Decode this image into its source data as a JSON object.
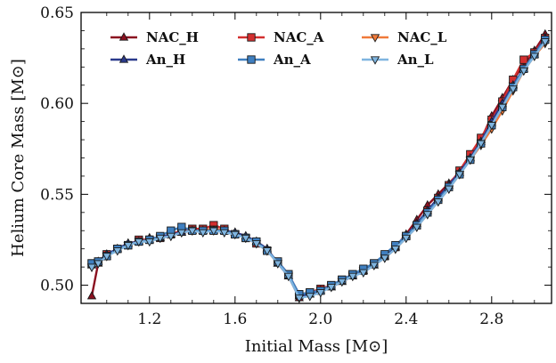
{
  "chart_data": {
    "type": "line",
    "xlabel": "Initial Mass [M⊙]",
    "ylabel": "Helium Core Mass [M⊙]",
    "xlim": [
      0.88,
      3.08
    ],
    "ylim": [
      0.49,
      0.65
    ],
    "xticks": [
      1.2,
      1.6,
      2.0,
      2.4,
      2.8
    ],
    "xtick_labels": [
      "1.2",
      "1.6",
      "2.0",
      "2.4",
      "2.8"
    ],
    "yticks": [
      0.5,
      0.55,
      0.6,
      0.65
    ],
    "ytick_labels": [
      "0.50",
      "0.55",
      "0.60",
      "0.65"
    ],
    "legend_position": "upper-left, 3 columns",
    "grid": false,
    "series": [
      {
        "name": "NAC_H",
        "color": "#8b1020",
        "marker": "triangle-up",
        "x": [
          0.93,
          0.96,
          1.0,
          1.05,
          1.1,
          1.15,
          1.2,
          1.25,
          1.3,
          1.35,
          1.4,
          1.45,
          1.5,
          1.55,
          1.6,
          1.65,
          1.7,
          1.75,
          1.8,
          1.85,
          1.9,
          1.95,
          2.0,
          2.05,
          2.1,
          2.15,
          2.2,
          2.25,
          2.3,
          2.35,
          2.4,
          2.45,
          2.5,
          2.55,
          2.6,
          2.65,
          2.7,
          2.75,
          2.8,
          2.85,
          2.9,
          2.95,
          3.0,
          3.05
        ],
        "y": [
          0.494,
          0.512,
          0.516,
          0.52,
          0.523,
          0.524,
          0.526,
          0.526,
          0.528,
          0.529,
          0.53,
          0.53,
          0.531,
          0.53,
          0.529,
          0.527,
          0.524,
          0.52,
          0.512,
          0.505,
          0.493,
          0.495,
          0.497,
          0.499,
          0.502,
          0.505,
          0.508,
          0.511,
          0.516,
          0.521,
          0.528,
          0.536,
          0.544,
          0.55,
          0.556,
          0.562,
          0.57,
          0.58,
          0.593,
          0.603,
          0.613,
          0.621,
          0.629,
          0.638
        ]
      },
      {
        "name": "NAC_A",
        "color": "#d32f2f",
        "marker": "square",
        "x": [
          0.93,
          0.96,
          1.0,
          1.05,
          1.1,
          1.15,
          1.2,
          1.25,
          1.3,
          1.35,
          1.4,
          1.45,
          1.5,
          1.55,
          1.6,
          1.65,
          1.7,
          1.75,
          1.8,
          1.85,
          1.9,
          1.95,
          2.0,
          2.05,
          2.1,
          2.15,
          2.2,
          2.25,
          2.3,
          2.35,
          2.4,
          2.45,
          2.5,
          2.55,
          2.6,
          2.65,
          2.7,
          2.75,
          2.8,
          2.85,
          2.9,
          2.95,
          3.0,
          3.05
        ],
        "y": [
          0.512,
          0.513,
          0.517,
          0.52,
          0.522,
          0.525,
          0.525,
          0.526,
          0.528,
          0.53,
          0.531,
          0.531,
          0.533,
          0.531,
          0.528,
          0.526,
          0.523,
          0.519,
          0.513,
          0.506,
          0.495,
          0.496,
          0.498,
          0.5,
          0.503,
          0.506,
          0.508,
          0.512,
          0.516,
          0.521,
          0.527,
          0.533,
          0.541,
          0.548,
          0.555,
          0.563,
          0.572,
          0.581,
          0.591,
          0.601,
          0.613,
          0.624,
          0.628,
          0.636
        ]
      },
      {
        "name": "NAC_L",
        "color": "#f07a3a",
        "marker": "triangle-down",
        "x": [
          0.93,
          0.96,
          1.0,
          1.05,
          1.1,
          1.15,
          1.2,
          1.25,
          1.3,
          1.35,
          1.4,
          1.45,
          1.5,
          1.55,
          1.6,
          1.65,
          1.7,
          1.75,
          1.8,
          1.85,
          1.9,
          1.95,
          2.0,
          2.05,
          2.1,
          2.15,
          2.2,
          2.25,
          2.3,
          2.35,
          2.4,
          2.45,
          2.5,
          2.55,
          2.6,
          2.65,
          2.7,
          2.75,
          2.8,
          2.85,
          2.9,
          2.95,
          3.0,
          3.05
        ],
        "y": [
          0.51,
          0.512,
          0.516,
          0.52,
          0.522,
          0.524,
          0.525,
          0.526,
          0.527,
          0.529,
          0.53,
          0.53,
          0.531,
          0.53,
          0.528,
          0.526,
          0.523,
          0.519,
          0.512,
          0.505,
          0.494,
          0.495,
          0.497,
          0.499,
          0.502,
          0.505,
          0.508,
          0.511,
          0.515,
          0.52,
          0.526,
          0.532,
          0.539,
          0.546,
          0.553,
          0.561,
          0.569,
          0.577,
          0.586,
          0.596,
          0.607,
          0.618,
          0.626,
          0.633
        ]
      },
      {
        "name": "An_H",
        "color": "#2a3a8c",
        "marker": "triangle-up",
        "x": [
          0.93,
          0.96,
          1.0,
          1.05,
          1.1,
          1.15,
          1.2,
          1.25,
          1.3,
          1.35,
          1.4,
          1.45,
          1.5,
          1.55,
          1.6,
          1.65,
          1.7,
          1.75,
          1.8,
          1.85,
          1.9,
          1.95,
          2.0,
          2.05,
          2.1,
          2.15,
          2.2,
          2.25,
          2.3,
          2.35,
          2.4,
          2.45,
          2.5,
          2.55,
          2.6,
          2.65,
          2.7,
          2.75,
          2.8,
          2.85,
          2.9,
          2.95,
          3.0,
          3.05
        ],
        "y": [
          0.511,
          0.513,
          0.517,
          0.52,
          0.523,
          0.524,
          0.525,
          0.526,
          0.528,
          0.529,
          0.53,
          0.53,
          0.53,
          0.53,
          0.529,
          0.527,
          0.524,
          0.52,
          0.512,
          0.505,
          0.494,
          0.495,
          0.497,
          0.499,
          0.502,
          0.505,
          0.508,
          0.511,
          0.516,
          0.521,
          0.527,
          0.534,
          0.541,
          0.548,
          0.555,
          0.562,
          0.57,
          0.579,
          0.59,
          0.6,
          0.61,
          0.619,
          0.627,
          0.636
        ]
      },
      {
        "name": "An_A",
        "color": "#3f7fc0",
        "marker": "square",
        "x": [
          0.93,
          0.96,
          1.0,
          1.05,
          1.1,
          1.15,
          1.2,
          1.25,
          1.3,
          1.35,
          1.4,
          1.45,
          1.5,
          1.55,
          1.6,
          1.65,
          1.7,
          1.75,
          1.8,
          1.85,
          1.9,
          1.95,
          2.0,
          2.05,
          2.1,
          2.15,
          2.2,
          2.25,
          2.3,
          2.35,
          2.4,
          2.45,
          2.5,
          2.55,
          2.6,
          2.65,
          2.7,
          2.75,
          2.8,
          2.85,
          2.9,
          2.95,
          3.0,
          3.05
        ],
        "y": [
          0.512,
          0.513,
          0.516,
          0.52,
          0.522,
          0.524,
          0.525,
          0.527,
          0.53,
          0.532,
          0.53,
          0.53,
          0.53,
          0.53,
          0.528,
          0.526,
          0.524,
          0.519,
          0.513,
          0.506,
          0.495,
          0.496,
          0.497,
          0.5,
          0.503,
          0.506,
          0.509,
          0.512,
          0.517,
          0.522,
          0.527,
          0.533,
          0.54,
          0.547,
          0.554,
          0.561,
          0.569,
          0.578,
          0.588,
          0.598,
          0.609,
          0.619,
          0.627,
          0.635
        ]
      },
      {
        "name": "An_L",
        "color": "#7fb5e0",
        "marker": "triangle-down",
        "x": [
          0.93,
          0.96,
          1.0,
          1.05,
          1.1,
          1.15,
          1.2,
          1.25,
          1.3,
          1.35,
          1.4,
          1.45,
          1.5,
          1.55,
          1.6,
          1.65,
          1.7,
          1.75,
          1.8,
          1.85,
          1.9,
          1.95,
          2.0,
          2.05,
          2.1,
          2.15,
          2.2,
          2.25,
          2.3,
          2.35,
          2.4,
          2.45,
          2.5,
          2.55,
          2.6,
          2.65,
          2.7,
          2.75,
          2.8,
          2.85,
          2.9,
          2.95,
          3.0,
          3.05
        ],
        "y": [
          0.51,
          0.512,
          0.516,
          0.519,
          0.522,
          0.524,
          0.524,
          0.526,
          0.527,
          0.529,
          0.53,
          0.529,
          0.53,
          0.529,
          0.528,
          0.526,
          0.523,
          0.519,
          0.512,
          0.505,
          0.493,
          0.494,
          0.496,
          0.499,
          0.502,
          0.505,
          0.507,
          0.511,
          0.515,
          0.52,
          0.526,
          0.532,
          0.539,
          0.546,
          0.553,
          0.561,
          0.569,
          0.578,
          0.588,
          0.598,
          0.608,
          0.618,
          0.626,
          0.634
        ]
      }
    ]
  }
}
